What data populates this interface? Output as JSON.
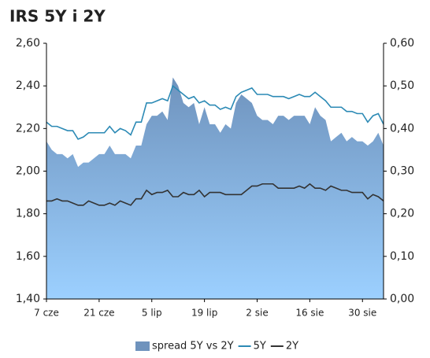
{
  "chart_data": {
    "type": "line",
    "title": "IRS 5Y i 2Y",
    "categories": [
      "7 cze",
      null,
      null,
      null,
      null,
      null,
      null,
      null,
      null,
      null,
      "21 cze",
      null,
      null,
      null,
      null,
      null,
      null,
      null,
      null,
      null,
      "5 lip",
      null,
      null,
      null,
      null,
      null,
      null,
      null,
      null,
      null,
      "19 lip",
      null,
      null,
      null,
      null,
      null,
      null,
      null,
      null,
      null,
      "2 sie",
      null,
      null,
      null,
      null,
      null,
      null,
      null,
      null,
      null,
      "16 sie",
      null,
      null,
      null,
      null,
      null,
      null,
      null,
      null,
      null,
      "30 sie",
      null,
      null,
      null,
      null
    ],
    "series": [
      {
        "name": "spread 5Y vs 2Y",
        "type": "area",
        "axis": "y2",
        "color": "#6f93bd",
        "values": [
          0.37,
          0.35,
          0.34,
          0.34,
          0.33,
          0.34,
          0.31,
          0.32,
          0.32,
          0.33,
          0.34,
          0.34,
          0.36,
          0.34,
          0.34,
          0.34,
          0.33,
          0.36,
          0.36,
          0.41,
          0.43,
          0.43,
          0.44,
          0.42,
          0.52,
          0.5,
          0.46,
          0.45,
          0.46,
          0.41,
          0.45,
          0.41,
          0.41,
          0.39,
          0.41,
          0.4,
          0.46,
          0.48,
          0.47,
          0.46,
          0.43,
          0.42,
          0.42,
          0.41,
          0.43,
          0.43,
          0.42,
          0.43,
          0.43,
          0.43,
          0.41,
          0.45,
          0.43,
          0.42,
          0.37,
          0.38,
          0.39,
          0.37,
          0.38,
          0.37,
          0.37,
          0.36,
          0.37,
          0.39,
          0.36
        ]
      },
      {
        "name": "5Y",
        "type": "line",
        "color": "#2c8ab5",
        "values": [
          2.23,
          2.21,
          2.21,
          2.2,
          2.19,
          2.19,
          2.15,
          2.16,
          2.18,
          2.18,
          2.18,
          2.18,
          2.21,
          2.18,
          2.2,
          2.19,
          2.17,
          2.23,
          2.23,
          2.32,
          2.32,
          2.33,
          2.34,
          2.33,
          2.4,
          2.38,
          2.36,
          2.34,
          2.35,
          2.32,
          2.33,
          2.31,
          2.31,
          2.29,
          2.3,
          2.29,
          2.35,
          2.37,
          2.38,
          2.39,
          2.36,
          2.36,
          2.36,
          2.35,
          2.35,
          2.35,
          2.34,
          2.35,
          2.36,
          2.35,
          2.35,
          2.37,
          2.35,
          2.33,
          2.3,
          2.3,
          2.3,
          2.28,
          2.28,
          2.27,
          2.27,
          2.23,
          2.26,
          2.27,
          2.22
        ]
      },
      {
        "name": "2Y",
        "type": "line",
        "color": "#333333",
        "values": [
          1.86,
          1.86,
          1.87,
          1.86,
          1.86,
          1.85,
          1.84,
          1.84,
          1.86,
          1.85,
          1.84,
          1.84,
          1.85,
          1.84,
          1.86,
          1.85,
          1.84,
          1.87,
          1.87,
          1.91,
          1.89,
          1.9,
          1.9,
          1.91,
          1.88,
          1.88,
          1.9,
          1.89,
          1.89,
          1.91,
          1.88,
          1.9,
          1.9,
          1.9,
          1.89,
          1.89,
          1.89,
          1.89,
          1.91,
          1.93,
          1.93,
          1.94,
          1.94,
          1.94,
          1.92,
          1.92,
          1.92,
          1.92,
          1.93,
          1.92,
          1.94,
          1.92,
          1.92,
          1.91,
          1.93,
          1.92,
          1.91,
          1.91,
          1.9,
          1.9,
          1.9,
          1.87,
          1.89,
          1.88,
          1.86
        ]
      }
    ],
    "ylim": [
      1.4,
      2.6
    ],
    "yticks": [
      {
        "value": 1.4,
        "label": "1,40"
      },
      {
        "value": 1.6,
        "label": "1,60"
      },
      {
        "value": 1.8,
        "label": "1,80"
      },
      {
        "value": 2.0,
        "label": "2,00"
      },
      {
        "value": 2.2,
        "label": "2,20"
      },
      {
        "value": 2.4,
        "label": "2,40"
      },
      {
        "value": 2.6,
        "label": "2,60"
      }
    ],
    "y2lim": [
      0,
      0.6
    ],
    "y2ticks": [
      {
        "value": 0,
        "label": "0,00"
      },
      {
        "value": 0.1,
        "label": "0,10"
      },
      {
        "value": 0.2,
        "label": "0,20"
      },
      {
        "value": 0.3,
        "label": "0,30"
      },
      {
        "value": 0.4,
        "label": "0,40"
      },
      {
        "value": 0.5,
        "label": "0,50"
      },
      {
        "value": 0.6,
        "label": "0,60"
      }
    ],
    "grid": false,
    "legend": "bottom"
  }
}
